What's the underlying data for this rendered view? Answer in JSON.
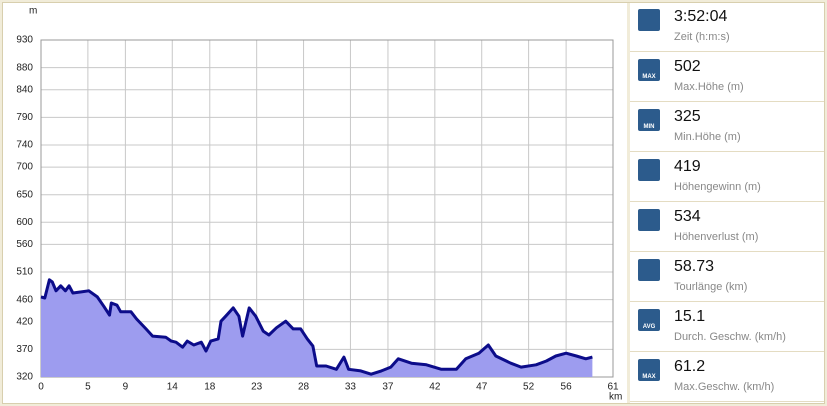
{
  "chart_data": {
    "type": "area",
    "y_unit": "m",
    "x_unit": "km",
    "xlim": [
      0,
      61
    ],
    "ylim": [
      320,
      930
    ],
    "xticks": [
      0,
      5,
      9,
      14,
      18,
      23,
      28,
      33,
      37,
      42,
      47,
      52,
      56,
      61
    ],
    "yticks": [
      320,
      370,
      420,
      460,
      510,
      560,
      600,
      650,
      700,
      740,
      790,
      840,
      880,
      930
    ],
    "grid": true,
    "series": [
      {
        "color": "#0c0c8a",
        "fill": "#9d9cef",
        "x": [
          0,
          0.4,
          0.9,
          1.2,
          1.6,
          2.1,
          2.6,
          3.0,
          3.4,
          4.3,
          5.1,
          6.0,
          6.7,
          7.3,
          7.5,
          8.1,
          8.5,
          9.6,
          10.2,
          11.2,
          11.9,
          13.3,
          13.9,
          14.4,
          15.1,
          15.6,
          16.3,
          17.1,
          17.6,
          18.1,
          18.9,
          19.2,
          19.7,
          20.5,
          21.1,
          21.5,
          22.2,
          22.9,
          23.7,
          24.3,
          25.1,
          26.1,
          26.9,
          27.7,
          28.4,
          29.0,
          29.4,
          30.4,
          31.5,
          32.3,
          32.8,
          34.1,
          35.2,
          36.3,
          37.3,
          38.1,
          39.5,
          41.1,
          42.7,
          44.3,
          45.3,
          46.7,
          47.7,
          48.5,
          50.1,
          51.2,
          52.8,
          53.9,
          54.9,
          56.0,
          57.1,
          58.1,
          58.8
        ],
        "values": [
          465,
          463,
          496,
          492,
          476,
          485,
          476,
          485,
          472,
          474,
          476,
          465,
          448,
          432,
          454,
          450,
          438,
          438,
          425,
          407,
          394,
          392,
          385,
          383,
          374,
          385,
          378,
          383,
          367,
          385,
          389,
          421,
          430,
          445,
          430,
          394,
          445,
          430,
          403,
          396,
          409,
          421,
          407,
          407,
          389,
          376,
          340,
          340,
          334,
          356,
          334,
          331,
          325,
          331,
          338,
          353,
          345,
          342,
          334,
          334,
          353,
          363,
          378,
          358,
          345,
          338,
          342,
          349,
          358,
          363,
          358,
          353,
          356
        ]
      }
    ]
  },
  "stats": [
    {
      "value": "3:52:04",
      "label": "Zeit (h:m:s)"
    },
    {
      "icon": "MAX",
      "value": "502",
      "label": "Max.Höhe (m)"
    },
    {
      "icon": "MIN",
      "value": "325",
      "label": "Min.Höhe (m)"
    },
    {
      "value": "419",
      "label": "Höhengewinn (m)"
    },
    {
      "value": "534",
      "label": "Höhenverlust (m)"
    },
    {
      "value": "58.73",
      "label": "Tourlänge (km)"
    },
    {
      "icon": "AVG",
      "value": "15.1",
      "label": "Durch. Geschw. (km/h)"
    },
    {
      "icon": "MAX",
      "value": "61.2",
      "label": "Max.Geschw. (km/h)"
    }
  ]
}
